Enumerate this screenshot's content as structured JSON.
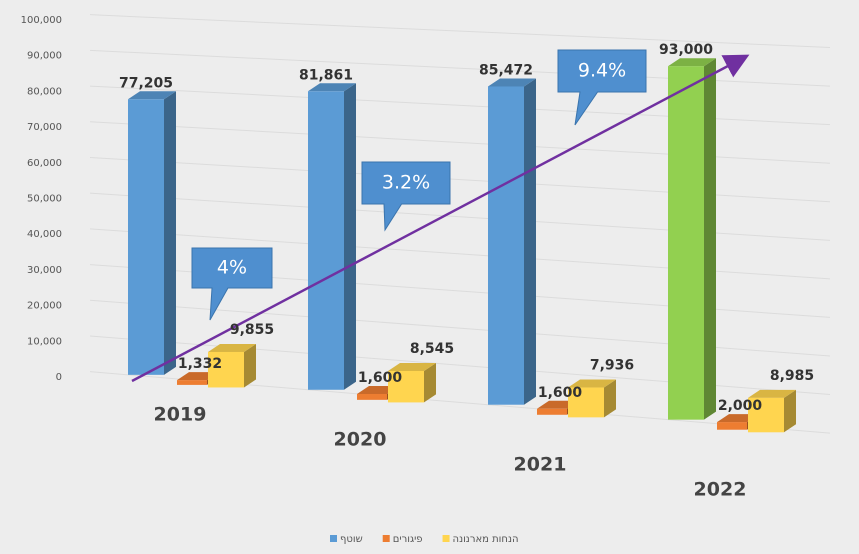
{
  "chart_data": {
    "type": "bar3d",
    "categories": [
      "2019",
      "2020",
      "2021",
      "2022"
    ],
    "series": [
      {
        "name": "שוטף",
        "colors": [
          "#5b9bd5",
          "#5b9bd5",
          "#5b9bd5",
          "#92d050"
        ],
        "values": [
          77205,
          81861,
          85472,
          93000
        ],
        "value_labels": [
          "77,205",
          "81,861",
          "85,472",
          "93,000"
        ]
      },
      {
        "name": "פיגורים",
        "color": "#ed7d31",
        "values": [
          1332,
          1600,
          1600,
          2000
        ],
        "value_labels": [
          "1,332",
          "1,600",
          "1,600",
          "2,000"
        ]
      },
      {
        "name": "הנחות מארנונה",
        "color": "#ffd54f",
        "values": [
          9855,
          8545,
          7936,
          8985
        ],
        "value_labels": [
          "9,855",
          "8,545",
          "7,936",
          "8,985"
        ]
      }
    ],
    "ylim": [
      0,
      100000
    ],
    "yticks": [
      0,
      {
        "value": 10000,
        "label": "10,000"
      },
      {
        "value": 20000,
        "label": "20,000"
      },
      {
        "value": 30000,
        "label": "30,000"
      },
      {
        "value": 40000,
        "label": "40,000"
      },
      {
        "value": 50000,
        "label": "50,000"
      },
      {
        "value": 60000,
        "label": "60,000"
      },
      {
        "value": 70000,
        "label": "70,000"
      },
      {
        "value": 80000,
        "label": "80,000"
      },
      {
        "value": 90000,
        "label": "90,000"
      },
      {
        "value": 100000,
        "label": "100,000"
      }
    ],
    "grid": true,
    "annotations": [
      "4%",
      "3.2%",
      "9.4%"
    ],
    "legend": "bottom"
  }
}
